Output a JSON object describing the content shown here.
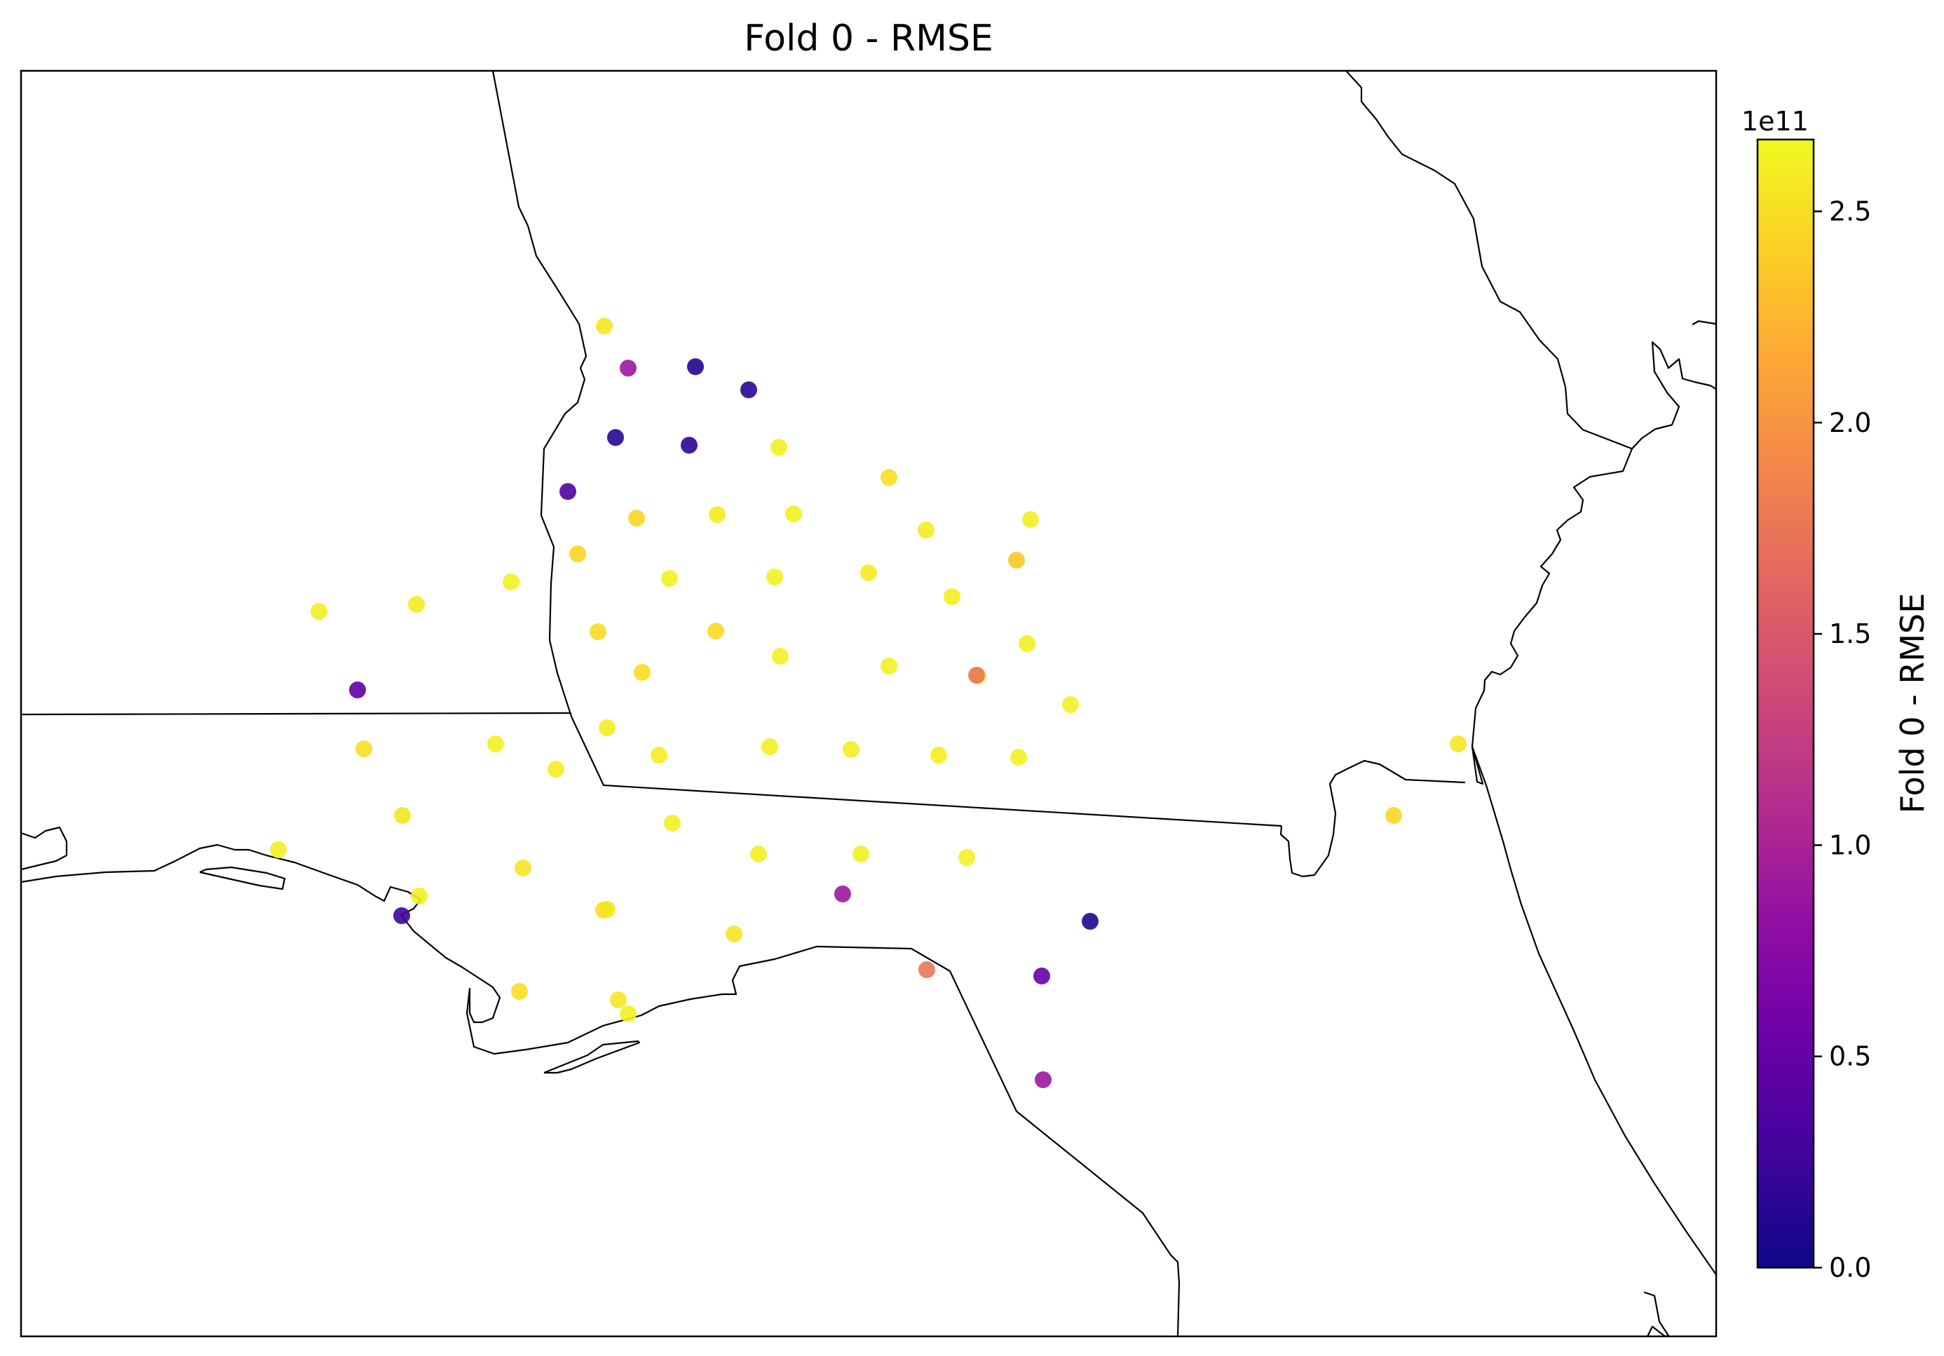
{
  "chart_data": {
    "type": "scatter",
    "title": "Fold 0 - RMSE",
    "colorbar": {
      "label": "Fold 0 - RMSE",
      "colormap": "plasma",
      "range": [
        0.0,
        267000000000.0
      ],
      "offset_text": "1e11",
      "ticks": [
        0.0,
        0.5,
        1.0,
        1.5,
        2.0,
        2.5
      ],
      "tick_labels": [
        "0.0",
        "0.5",
        "1.0",
        "1.5",
        "2.0",
        "2.5"
      ]
    },
    "stations": [
      {
        "rmse": 255000000000.0
      },
      {
        "rmse": 90000000000.0
      },
      {
        "rmse": 12000000000.0
      },
      {
        "rmse": 14000000000.0
      },
      {
        "rmse": 14000000000.0
      },
      {
        "rmse": 16000000000.0
      },
      {
        "rmse": 260000000000.0
      },
      {
        "rmse": 250000000000.0
      },
      {
        "rmse": 35000000000.0
      },
      {
        "rmse": 245000000000.0
      },
      {
        "rmse": 258000000000.0
      },
      {
        "rmse": 262000000000.0
      },
      {
        "rmse": 258000000000.0
      },
      {
        "rmse": 260000000000.0
      },
      {
        "rmse": 245000000000.0
      },
      {
        "rmse": 262000000000.0
      },
      {
        "rmse": 262000000000.0
      },
      {
        "rmse": 258000000000.0
      },
      {
        "rmse": 235000000000.0
      },
      {
        "rmse": 262000000000.0
      },
      {
        "rmse": 260000000000.0
      },
      {
        "rmse": 260000000000.0
      },
      {
        "rmse": 258000000000.0
      },
      {
        "rmse": 248000000000.0
      },
      {
        "rmse": 248000000000.0
      },
      {
        "rmse": 262000000000.0
      },
      {
        "rmse": 262000000000.0
      },
      {
        "rmse": 262000000000.0
      },
      {
        "rmse": 250000000000.0
      },
      {
        "rmse": 262000000000.0
      },
      {
        "rmse": 175000000000.0
      },
      {
        "rmse": 262000000000.0
      },
      {
        "rmse": 45000000000.0
      },
      {
        "rmse": 250000000000.0
      },
      {
        "rmse": 260000000000.0
      },
      {
        "rmse": 260000000000.0
      },
      {
        "rmse": 262000000000.0
      },
      {
        "rmse": 260000000000.0
      },
      {
        "rmse": 260000000000.0
      },
      {
        "rmse": 262000000000.0
      },
      {
        "rmse": 260000000000.0
      },
      {
        "rmse": 255000000000.0
      },
      {
        "rmse": 255000000000.0
      },
      {
        "rmse": 260000000000.0
      },
      {
        "rmse": 260000000000.0
      },
      {
        "rmse": 262000000000.0
      },
      {
        "rmse": 262000000000.0
      },
      {
        "rmse": 245000000000.0
      },
      {
        "rmse": 260000000000.0
      },
      {
        "rmse": 90000000000.0
      },
      {
        "rmse": 262000000000.0
      },
      {
        "rmse": 25000000000.0
      },
      {
        "rmse": 255000000000.0
      },
      {
        "rmse": 250000000000.0
      },
      {
        "rmse": 10000000000.0
      },
      {
        "rmse": 255000000000.0
      },
      {
        "rmse": 175000000000.0
      },
      {
        "rmse": 50000000000.0
      },
      {
        "rmse": 250000000000.0
      },
      {
        "rmse": 255000000000.0
      },
      {
        "rmse": 262000000000.0
      },
      {
        "rmse": 90000000000.0
      },
      {
        "rmse": 262000000000.0
      },
      {
        "rmse": 255000000000.0
      }
    ]
  }
}
